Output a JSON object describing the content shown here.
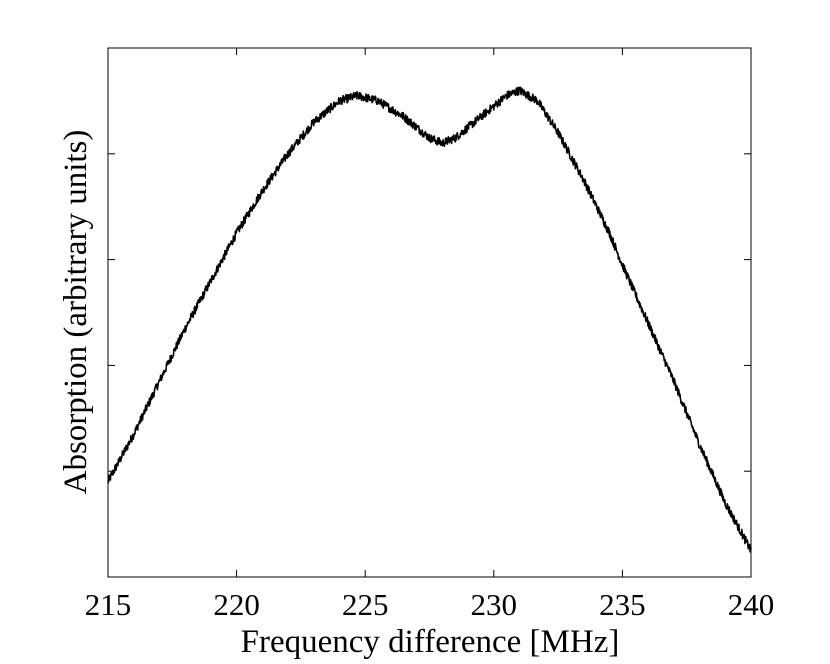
{
  "chart_data": {
    "type": "line",
    "title": "",
    "xlabel": "Frequency difference [MHz]",
    "ylabel": "Absorption (arbitrary units)",
    "xlim": [
      215,
      240
    ],
    "ylim": [
      0,
      1
    ],
    "xticks": [
      215,
      220,
      225,
      230,
      235,
      240
    ],
    "xtick_labels": [
      "215",
      "220",
      "225",
      "230",
      "235",
      "240"
    ],
    "yticks": [
      0.2,
      0.4,
      0.6,
      0.8
    ],
    "ytick_labels": [
      "",
      "",
      "",
      ""
    ],
    "grid": false,
    "legend": "none",
    "noise_amplitude": 0.008,
    "series": [
      {
        "name": "absorption",
        "color": "#000000",
        "x": [
          215,
          216,
          217,
          218,
          219,
          220,
          221,
          222,
          223,
          224,
          224.7,
          225.5,
          226.5,
          227.5,
          228,
          228.5,
          229.5,
          230.5,
          231,
          231.7,
          232.5,
          233.5,
          234.5,
          235,
          236,
          237,
          238,
          239,
          240
        ],
        "y": [
          0.18,
          0.27,
          0.37,
          0.47,
          0.56,
          0.65,
          0.73,
          0.8,
          0.86,
          0.9,
          0.91,
          0.9,
          0.87,
          0.83,
          0.82,
          0.83,
          0.87,
          0.91,
          0.92,
          0.9,
          0.84,
          0.75,
          0.65,
          0.59,
          0.48,
          0.37,
          0.25,
          0.14,
          0.05
        ]
      }
    ]
  }
}
